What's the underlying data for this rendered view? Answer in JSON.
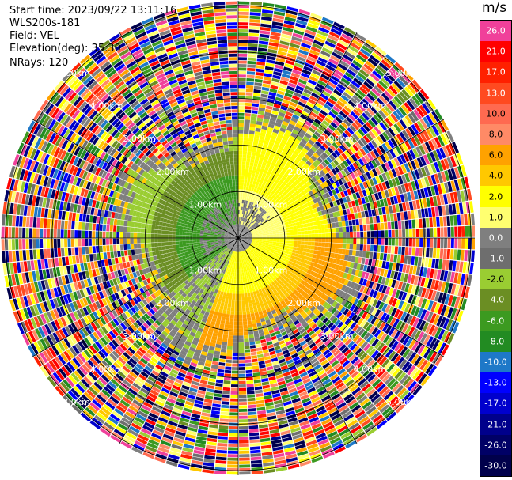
{
  "info": {
    "start_time": "Start time: 2023/09/22 13:11:16",
    "site": "WLS200s-181",
    "field": "Field: VEL",
    "elevation": "Elevation(deg): 35.30",
    "nrays": "NRays: 120"
  },
  "colorbar": {
    "unit": "m/s",
    "levels": [
      {
        "label": "26.0",
        "color": "#f0409a"
      },
      {
        "label": "21.0",
        "color": "#ff0000"
      },
      {
        "label": "17.0",
        "color": "#ff2000"
      },
      {
        "label": "13.0",
        "color": "#ff4a20"
      },
      {
        "label": "10.0",
        "color": "#ff6a50"
      },
      {
        "label": "8.0",
        "color": "#ff8a66"
      },
      {
        "label": "6.0",
        "color": "#ffa200"
      },
      {
        "label": "4.0",
        "color": "#ffc800"
      },
      {
        "label": "2.0",
        "color": "#ffff00"
      },
      {
        "label": "1.0",
        "color": "#ffff70"
      },
      {
        "label": "0.0",
        "color": "#7f7f7f"
      },
      {
        "label": "-1.0",
        "color": "#6e6e6e"
      },
      {
        "label": "-2.0",
        "color": "#9acd32"
      },
      {
        "label": "-4.0",
        "color": "#6b8e23"
      },
      {
        "label": "-6.0",
        "color": "#3c9a20"
      },
      {
        "label": "-8.0",
        "color": "#228b22"
      },
      {
        "label": "-10.0",
        "color": "#1e78c8"
      },
      {
        "label": "-13.0",
        "color": "#0000ff"
      },
      {
        "label": "-17.0",
        "color": "#0000cd"
      },
      {
        "label": "-21.0",
        "color": "#00008b"
      },
      {
        "label": "-26.0",
        "color": "#000066"
      },
      {
        "label": "-30.0",
        "color": "#00004b"
      }
    ]
  },
  "chart_data": {
    "type": "heatmap",
    "projection": "polar (PPI)",
    "field": "VEL",
    "unit": "m/s",
    "range_rings_km": [
      1,
      2,
      3,
      4,
      5
    ],
    "ring_labels": [
      "1.00km",
      "2.00km",
      "3.00km",
      "4.00km",
      "5.00km"
    ],
    "azimuth_spokes_deg": [
      0,
      30,
      60,
      90,
      120,
      150,
      180,
      210,
      240,
      270,
      300,
      330
    ],
    "nrays": 120,
    "max_range_km": 5.1,
    "clim": [
      -30.0,
      26.0
    ],
    "velocity_field_summary": [
      {
        "sector_deg": [
          0,
          90
        ],
        "range_km": [
          0,
          2.3
        ],
        "velocity_ms": 2.0
      },
      {
        "sector_deg": [
          90,
          200
        ],
        "range_km": [
          0,
          2.3
        ],
        "velocity_ms": 4.0
      },
      {
        "sector_deg": [
          200,
          360
        ],
        "range_km": [
          0,
          2.3
        ],
        "velocity_ms": -6.0
      },
      {
        "sector_deg": [
          0,
          360
        ],
        "range_km": [
          0,
          0.8
        ],
        "velocity_ms": 0.0
      },
      {
        "sector_deg": [
          0,
          360
        ],
        "range_km": [
          2.3,
          5.1
        ],
        "velocity_ms": "noise"
      }
    ]
  }
}
